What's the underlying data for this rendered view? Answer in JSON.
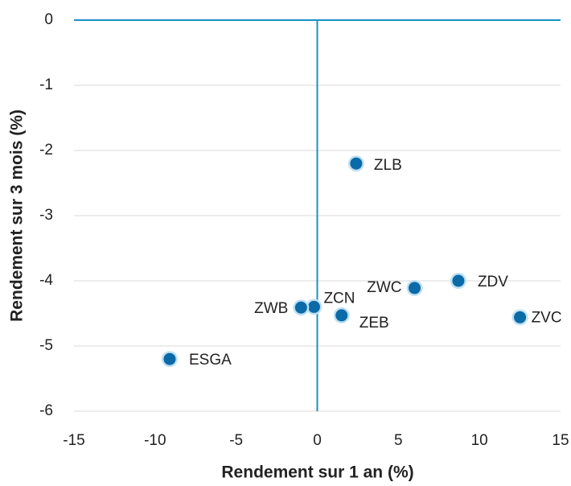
{
  "chart_data": {
    "type": "scatter",
    "xlabel": "Rendement sur 1 an (%)",
    "ylabel": "Rendement sur 3 mois (%)",
    "labels": [
      "ZLB",
      "ZWC",
      "ZDV",
      "ZVC",
      "ZEB",
      "ZCN",
      "ZWB",
      "ESGA"
    ],
    "x": [
      2.4,
      6.0,
      8.7,
      12.5,
      1.5,
      -0.2,
      -1.0,
      -9.1
    ],
    "y": [
      -2.2,
      -4.11,
      -4.0,
      -4.56,
      -4.53,
      -4.4,
      -4.41,
      -5.2
    ],
    "color": "#0b6aa8",
    "axis_color": "#1b8fc7",
    "xlim": [
      -15,
      15
    ],
    "xticks": [
      -15,
      -10,
      -5,
      0,
      5,
      10,
      15
    ],
    "ylim": [
      -6,
      0
    ],
    "yticks": [
      0,
      -1,
      -2,
      -3,
      -4,
      -5,
      -6
    ],
    "grid": true
  }
}
